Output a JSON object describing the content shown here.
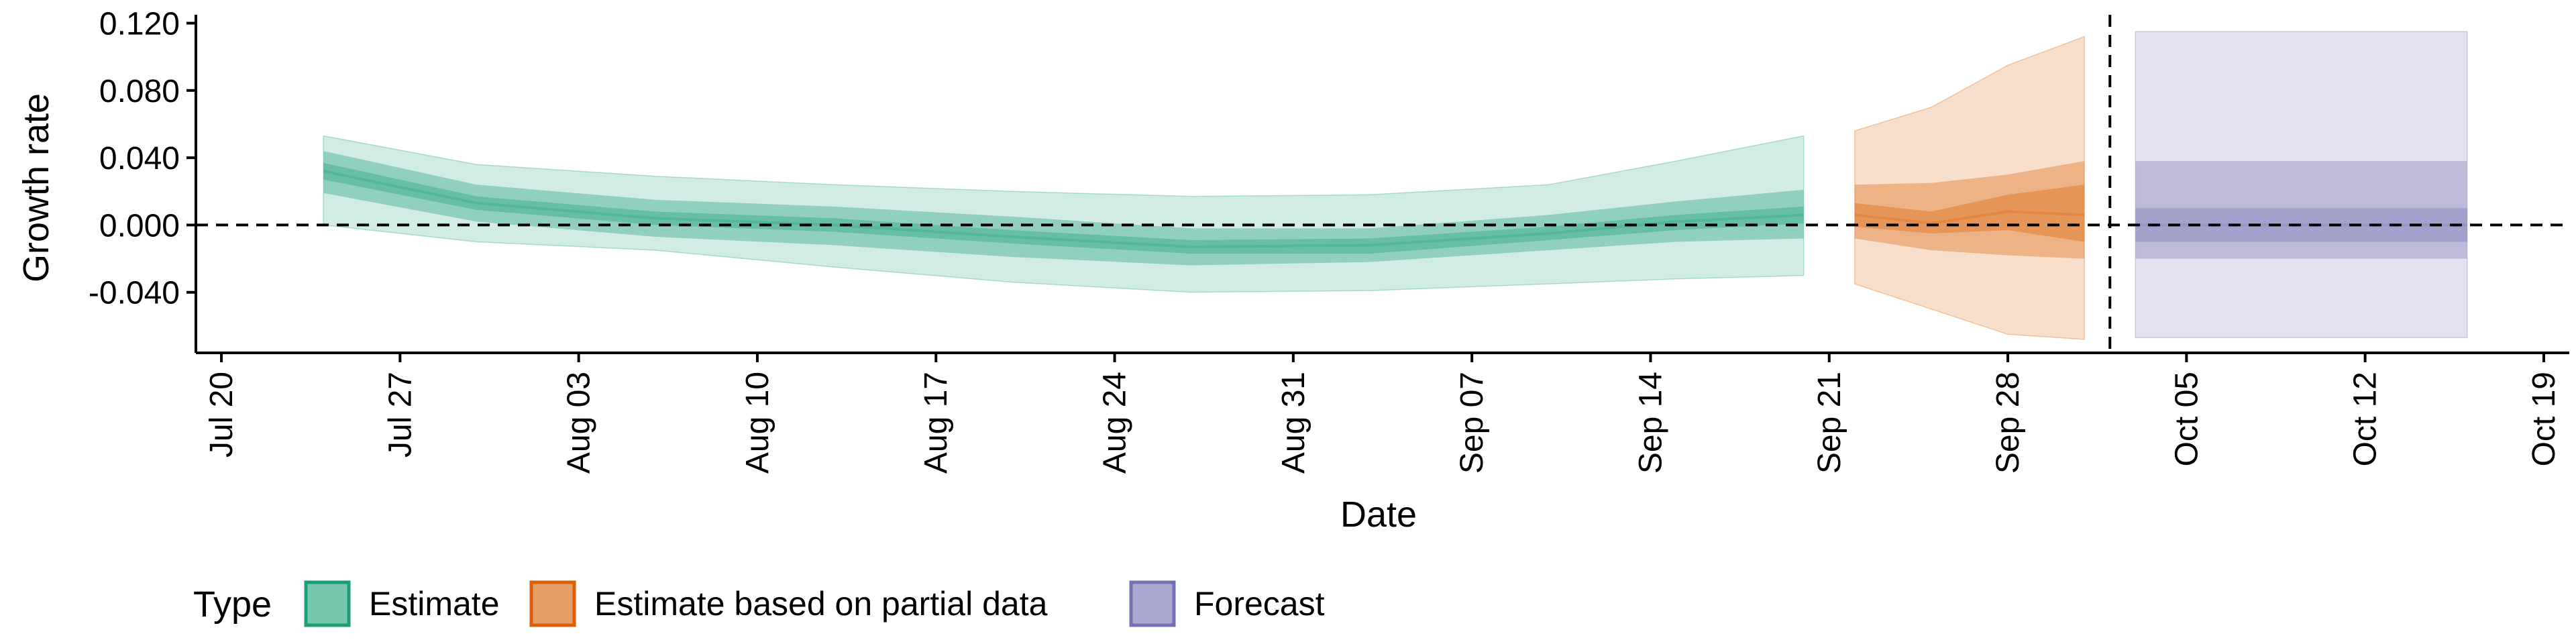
{
  "chart_data": {
    "type": "area",
    "title": "",
    "xlabel": "Date",
    "ylabel": "Growth rate",
    "x_ticks": [
      "Jul 20",
      "Jul 27",
      "Aug 03",
      "Aug 10",
      "Aug 17",
      "Aug 24",
      "Aug 31",
      "Sep 07",
      "Sep 14",
      "Sep 21",
      "Sep 28",
      "Oct 05",
      "Oct 12",
      "Oct 19"
    ],
    "y_ticks": [
      "0.120",
      "0.080",
      "0.040",
      "0.000",
      "-0.040"
    ],
    "x_range": [
      "2020-07-19",
      "2020-10-20"
    ],
    "ylim": [
      -0.076,
      0.125
    ],
    "reference_lines": {
      "horizontal_y": 0.0,
      "vertical_x": "2020-10-02"
    },
    "legend": {
      "title": "Type",
      "position": "bottom-left",
      "entries": [
        {
          "label": "Estimate",
          "color": "#1b9e77"
        },
        {
          "label": "Estimate based on partial data",
          "color": "#d95f02"
        },
        {
          "label": "Forecast",
          "color": "#7570b3"
        }
      ]
    },
    "series": [
      {
        "name": "Estimate",
        "color": "#1b9e77",
        "x": [
          "2020-07-24",
          "2020-07-30",
          "2020-08-06",
          "2020-08-13",
          "2020-08-20",
          "2020-08-27",
          "2020-09-03",
          "2020-09-10",
          "2020-09-15",
          "2020-09-20"
        ],
        "median": [
          0.032,
          0.013,
          0.004,
          0.0,
          -0.007,
          -0.013,
          -0.012,
          -0.005,
          0.002,
          0.006
        ],
        "inner_lower": [
          0.027,
          0.009,
          0.0,
          -0.004,
          -0.011,
          -0.017,
          -0.017,
          -0.009,
          -0.003,
          0.001
        ],
        "inner_upper": [
          0.037,
          0.017,
          0.008,
          0.004,
          -0.003,
          -0.009,
          -0.008,
          -0.001,
          0.006,
          0.011
        ],
        "mid_lower": [
          0.019,
          0.002,
          -0.007,
          -0.012,
          -0.019,
          -0.024,
          -0.022,
          -0.015,
          -0.01,
          -0.008
        ],
        "mid_upper": [
          0.044,
          0.024,
          0.015,
          0.011,
          0.005,
          -0.002,
          -0.002,
          0.006,
          0.014,
          0.021
        ],
        "outer_lower": [
          0.0,
          -0.01,
          -0.015,
          -0.025,
          -0.034,
          -0.04,
          -0.039,
          -0.035,
          -0.032,
          -0.03
        ],
        "outer_upper": [
          0.053,
          0.036,
          0.029,
          0.024,
          0.02,
          0.017,
          0.018,
          0.024,
          0.038,
          0.053
        ]
      },
      {
        "name": "Estimate based on partial data",
        "color": "#d95f02",
        "x": [
          "2020-09-22",
          "2020-09-25",
          "2020-09-28",
          "2020-10-01"
        ],
        "median": [
          0.006,
          0.001,
          0.008,
          0.006
        ],
        "inner_lower": [
          -0.001,
          -0.005,
          -0.003,
          -0.01
        ],
        "inner_upper": [
          0.013,
          0.008,
          0.018,
          0.024
        ],
        "mid_lower": [
          -0.008,
          -0.015,
          -0.018,
          -0.02
        ],
        "mid_upper": [
          0.024,
          0.025,
          0.03,
          0.038
        ],
        "outer_lower": [
          -0.035,
          -0.05,
          -0.065,
          -0.068
        ],
        "outer_upper": [
          0.056,
          0.07,
          0.095,
          0.112
        ]
      },
      {
        "name": "Forecast",
        "color": "#7570b3",
        "x": [
          "2020-10-03",
          "2020-10-16"
        ],
        "median": [
          0.0,
          0.0
        ],
        "inner_lower": [
          -0.01,
          -0.01
        ],
        "inner_upper": [
          0.01,
          0.01
        ],
        "mid_lower": [
          -0.02,
          -0.02
        ],
        "mid_upper": [
          0.038,
          0.038
        ],
        "outer_lower": [
          -0.067,
          -0.067
        ],
        "outer_upper": [
          0.115,
          0.115
        ]
      }
    ]
  }
}
